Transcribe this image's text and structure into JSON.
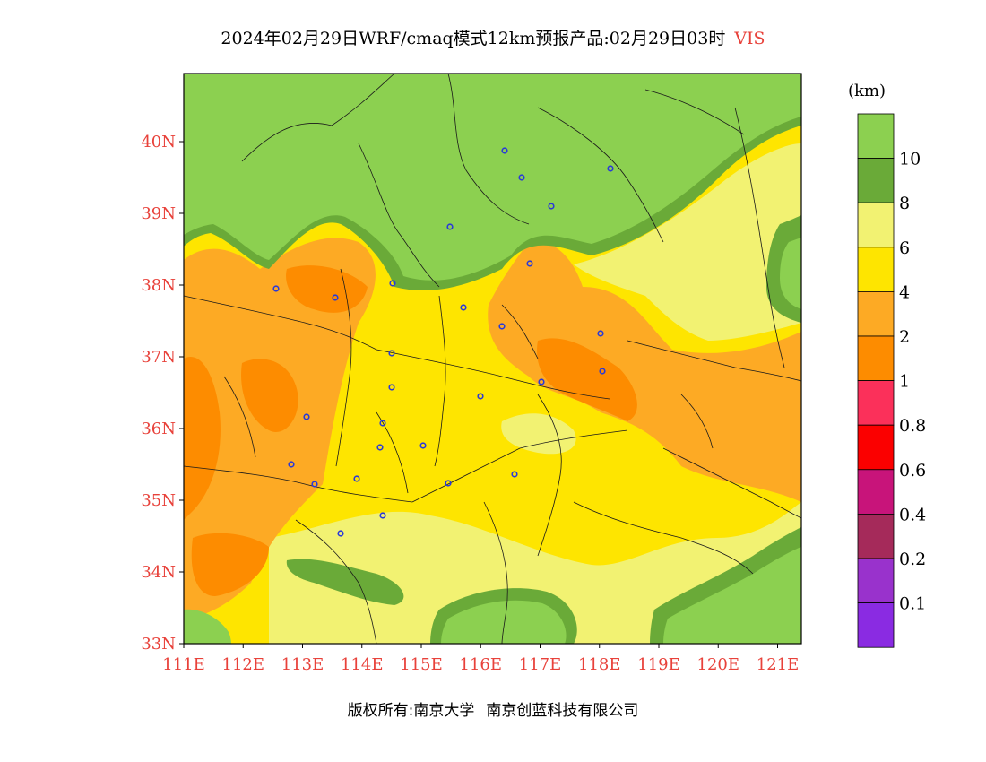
{
  "title": {
    "main": "2024年02月29日WRF/cmaq模式12km预报产品:02月29日03时",
    "variable": "VIS",
    "variable_color": "#e8413a"
  },
  "axes": {
    "x_ticks": [
      "111E",
      "112E",
      "113E",
      "114E",
      "115E",
      "116E",
      "117E",
      "118E",
      "119E",
      "120E",
      "121E"
    ],
    "y_ticks": [
      "40N",
      "39N",
      "38N",
      "37N",
      "36N",
      "35N",
      "34N",
      "33N"
    ],
    "tick_color": "#e8413a",
    "lon_range": [
      111,
      121.4
    ],
    "lat_range": [
      33,
      40.95
    ]
  },
  "legend": {
    "unit": "(km)",
    "colors": [
      "#8cd050",
      "#6aaa38",
      "#f2f272",
      "#fee500",
      "#fdaa24",
      "#fd8c00",
      "#fb305a",
      "#fb0000",
      "#c8147a",
      "#a52a5a",
      "#9932cc",
      "#8a2be2"
    ],
    "labels": [
      "10",
      "8",
      "6",
      "4",
      "2",
      "1",
      "0.8",
      "0.6",
      "0.4",
      "0.2",
      "0.1"
    ]
  },
  "map": {
    "colors": {
      "gt10": "#8cd050",
      "8to10": "#6aaa38",
      "6to8": "#f2f272",
      "4to6": "#fee500",
      "2to4": "#fdaa24",
      "1to2": "#fd8c00"
    },
    "city_marker_color": "#2a3ad8"
  },
  "footer": {
    "copyright": "版权所有:南京大学",
    "company": "南京创蓝科技有限公司"
  }
}
